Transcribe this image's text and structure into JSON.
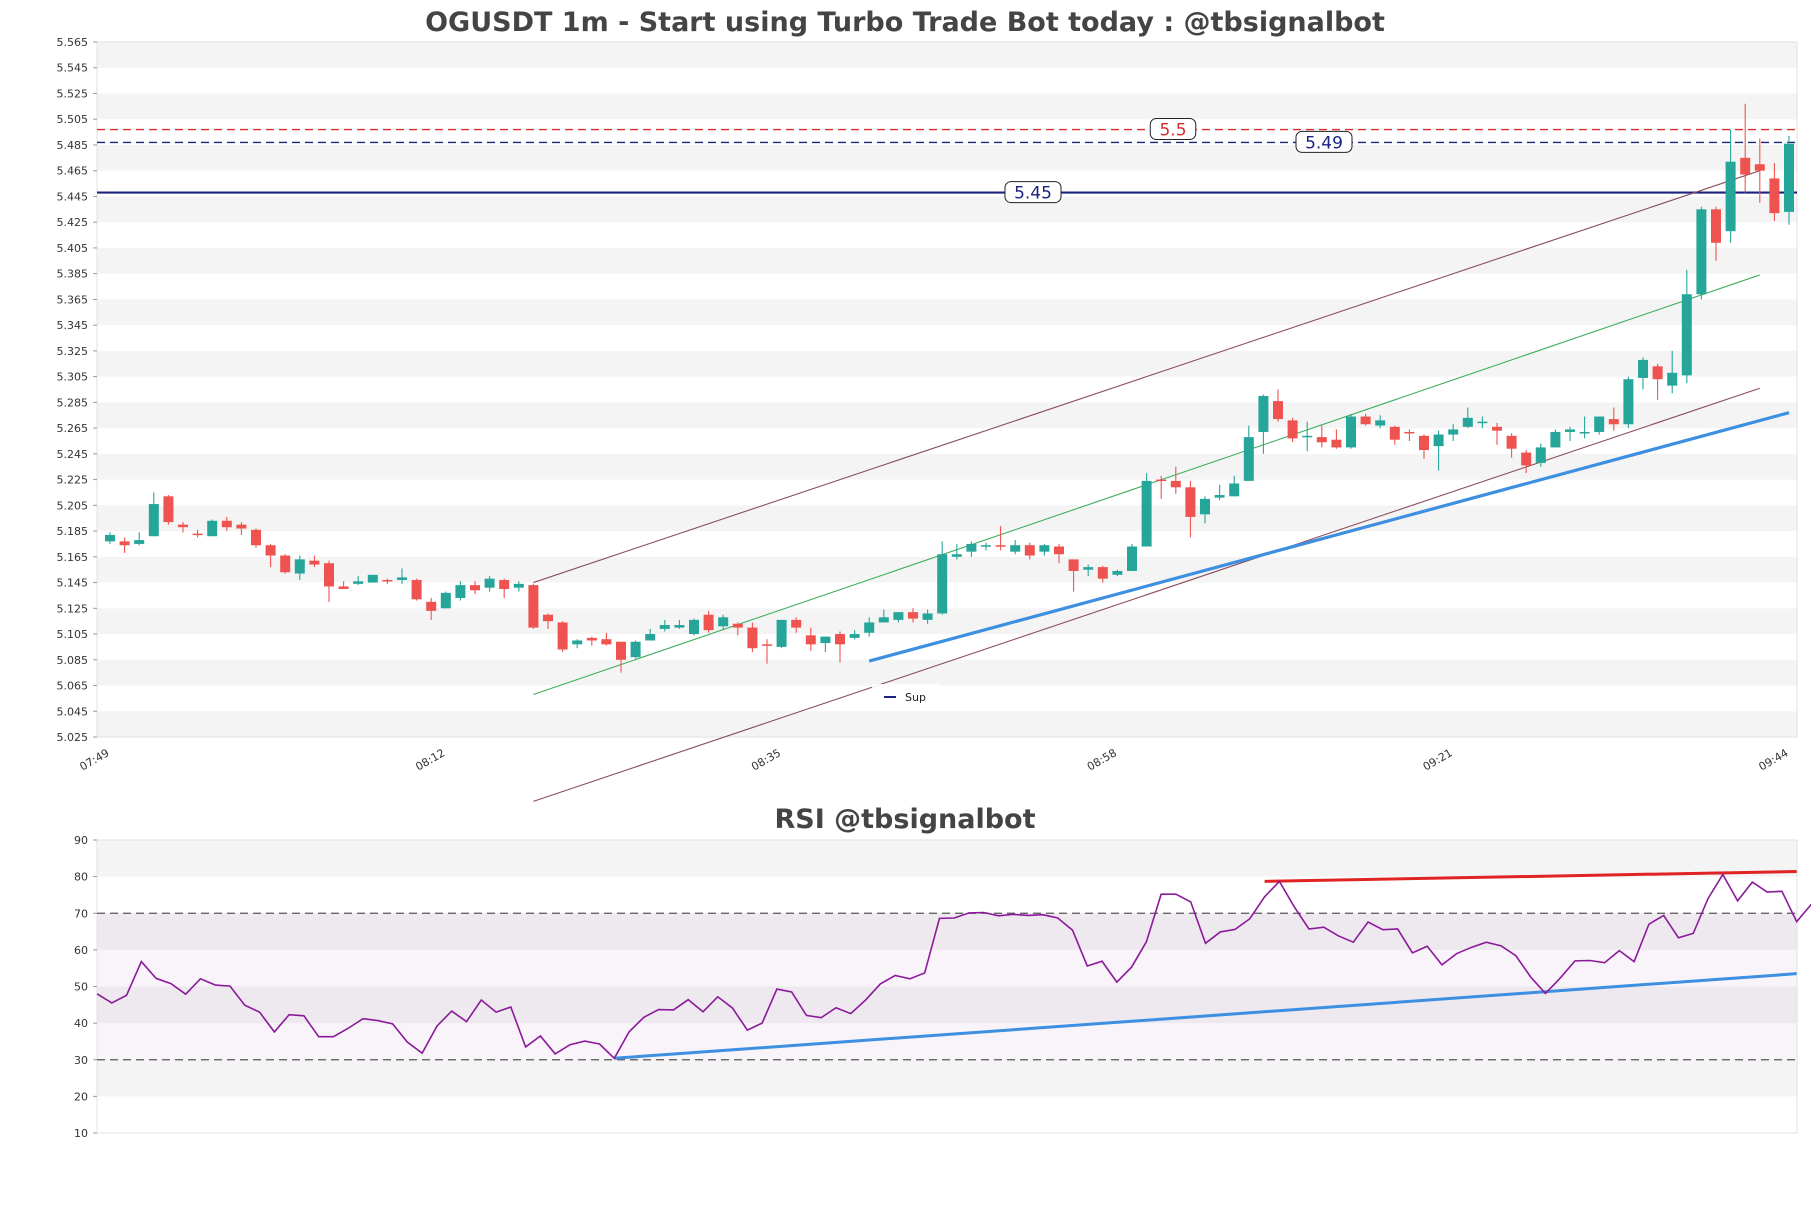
{
  "chart_data": [
    {
      "type": "candlestick",
      "title": "OGUSDT 1m - Start using Turbo Trade Bot today : @tbsignalbot",
      "ylim": [
        5.025,
        5.565
      ],
      "y_ticks": [
        "5.025",
        "5.045",
        "5.065",
        "5.085",
        "5.105",
        "5.125",
        "5.145",
        "5.165",
        "5.185",
        "5.205",
        "5.225",
        "5.245",
        "5.265",
        "5.285",
        "5.305",
        "5.325",
        "5.345",
        "5.365",
        "5.385",
        "5.405",
        "5.425",
        "5.445",
        "5.465",
        "5.485",
        "5.505",
        "5.525",
        "5.545",
        "5.565"
      ],
      "x_ticks": [
        "07:49",
        "08:12",
        "08:35",
        "08:58",
        "09:21",
        "09:44"
      ],
      "x_tick_index": [
        0,
        23,
        46,
        69,
        92,
        115
      ],
      "colors": {
        "up": "#26a69a",
        "down": "#ef5350"
      },
      "candles": [
        {
          "o": 5.177,
          "h": 5.184,
          "l": 5.175,
          "c": 5.182
        },
        {
          "o": 5.177,
          "h": 5.18,
          "l": 5.168,
          "c": 5.174
        },
        {
          "o": 5.175,
          "h": 5.184,
          "l": 5.174,
          "c": 5.178
        },
        {
          "o": 5.181,
          "h": 5.215,
          "l": 5.181,
          "c": 5.206
        },
        {
          "o": 5.212,
          "h": 5.213,
          "l": 5.19,
          "c": 5.192
        },
        {
          "o": 5.19,
          "h": 5.192,
          "l": 5.184,
          "c": 5.188
        },
        {
          "o": 5.183,
          "h": 5.186,
          "l": 5.18,
          "c": 5.182
        },
        {
          "o": 5.181,
          "h": 5.194,
          "l": 5.181,
          "c": 5.193
        },
        {
          "o": 5.193,
          "h": 5.196,
          "l": 5.185,
          "c": 5.188
        },
        {
          "o": 5.19,
          "h": 5.192,
          "l": 5.182,
          "c": 5.187
        },
        {
          "o": 5.186,
          "h": 5.187,
          "l": 5.172,
          "c": 5.174
        },
        {
          "o": 5.174,
          "h": 5.175,
          "l": 5.157,
          "c": 5.166
        },
        {
          "o": 5.166,
          "h": 5.167,
          "l": 5.152,
          "c": 5.153
        },
        {
          "o": 5.152,
          "h": 5.166,
          "l": 5.147,
          "c": 5.163
        },
        {
          "o": 5.162,
          "h": 5.166,
          "l": 5.157,
          "c": 5.159
        },
        {
          "o": 5.16,
          "h": 5.162,
          "l": 5.13,
          "c": 5.142
        },
        {
          "o": 5.142,
          "h": 5.146,
          "l": 5.14,
          "c": 5.14
        },
        {
          "o": 5.144,
          "h": 5.15,
          "l": 5.143,
          "c": 5.146
        },
        {
          "o": 5.145,
          "h": 5.151,
          "l": 5.145,
          "c": 5.151
        },
        {
          "o": 5.147,
          "h": 5.148,
          "l": 5.144,
          "c": 5.146
        },
        {
          "o": 5.147,
          "h": 5.156,
          "l": 5.144,
          "c": 5.149
        },
        {
          "o": 5.147,
          "h": 5.148,
          "l": 5.131,
          "c": 5.132
        },
        {
          "o": 5.13,
          "h": 5.133,
          "l": 5.116,
          "c": 5.123
        },
        {
          "o": 5.125,
          "h": 5.138,
          "l": 5.125,
          "c": 5.137
        },
        {
          "o": 5.133,
          "h": 5.146,
          "l": 5.131,
          "c": 5.143
        },
        {
          "o": 5.143,
          "h": 5.146,
          "l": 5.136,
          "c": 5.139
        },
        {
          "o": 5.141,
          "h": 5.15,
          "l": 5.138,
          "c": 5.148
        },
        {
          "o": 5.147,
          "h": 5.148,
          "l": 5.133,
          "c": 5.14
        },
        {
          "o": 5.141,
          "h": 5.146,
          "l": 5.138,
          "c": 5.144
        },
        {
          "o": 5.143,
          "h": 5.144,
          "l": 5.109,
          "c": 5.11
        },
        {
          "o": 5.12,
          "h": 5.121,
          "l": 5.109,
          "c": 5.115
        },
        {
          "o": 5.114,
          "h": 5.115,
          "l": 5.091,
          "c": 5.093
        },
        {
          "o": 5.097,
          "h": 5.101,
          "l": 5.094,
          "c": 5.1
        },
        {
          "o": 5.102,
          "h": 5.103,
          "l": 5.096,
          "c": 5.1
        },
        {
          "o": 5.101,
          "h": 5.106,
          "l": 5.096,
          "c": 5.097
        },
        {
          "o": 5.099,
          "h": 5.099,
          "l": 5.075,
          "c": 5.085
        },
        {
          "o": 5.087,
          "h": 5.1,
          "l": 5.086,
          "c": 5.099
        },
        {
          "o": 5.1,
          "h": 5.109,
          "l": 5.1,
          "c": 5.105
        },
        {
          "o": 5.109,
          "h": 5.116,
          "l": 5.107,
          "c": 5.112
        },
        {
          "o": 5.11,
          "h": 5.116,
          "l": 5.109,
          "c": 5.112
        },
        {
          "o": 5.105,
          "h": 5.117,
          "l": 5.104,
          "c": 5.116
        },
        {
          "o": 5.12,
          "h": 5.123,
          "l": 5.106,
          "c": 5.108
        },
        {
          "o": 5.111,
          "h": 5.12,
          "l": 5.108,
          "c": 5.118
        },
        {
          "o": 5.113,
          "h": 5.114,
          "l": 5.104,
          "c": 5.11
        },
        {
          "o": 5.11,
          "h": 5.114,
          "l": 5.091,
          "c": 5.094
        },
        {
          "o": 5.097,
          "h": 5.101,
          "l": 5.082,
          "c": 5.096
        },
        {
          "o": 5.095,
          "h": 5.116,
          "l": 5.094,
          "c": 5.116
        },
        {
          "o": 5.116,
          "h": 5.118,
          "l": 5.106,
          "c": 5.11
        },
        {
          "o": 5.104,
          "h": 5.11,
          "l": 5.092,
          "c": 5.097
        },
        {
          "o": 5.098,
          "h": 5.101,
          "l": 5.091,
          "c": 5.103
        },
        {
          "o": 5.105,
          "h": 5.107,
          "l": 5.083,
          "c": 5.097
        },
        {
          "o": 5.102,
          "h": 5.108,
          "l": 5.101,
          "c": 5.105
        },
        {
          "o": 5.106,
          "h": 5.118,
          "l": 5.103,
          "c": 5.114
        },
        {
          "o": 5.114,
          "h": 5.124,
          "l": 5.114,
          "c": 5.118
        },
        {
          "o": 5.116,
          "h": 5.122,
          "l": 5.114,
          "c": 5.122
        },
        {
          "o": 5.122,
          "h": 5.125,
          "l": 5.114,
          "c": 5.117
        },
        {
          "o": 5.116,
          "h": 5.124,
          "l": 5.113,
          "c": 5.121
        },
        {
          "o": 5.121,
          "h": 5.177,
          "l": 5.12,
          "c": 5.167
        },
        {
          "o": 5.165,
          "h": 5.175,
          "l": 5.163,
          "c": 5.167
        },
        {
          "o": 5.169,
          "h": 5.177,
          "l": 5.165,
          "c": 5.175
        },
        {
          "o": 5.174,
          "h": 5.176,
          "l": 5.17,
          "c": 5.174
        },
        {
          "o": 5.174,
          "h": 5.189,
          "l": 5.17,
          "c": 5.173
        },
        {
          "o": 5.169,
          "h": 5.178,
          "l": 5.167,
          "c": 5.174
        },
        {
          "o": 5.174,
          "h": 5.176,
          "l": 5.163,
          "c": 5.166
        },
        {
          "o": 5.169,
          "h": 5.175,
          "l": 5.166,
          "c": 5.174
        },
        {
          "o": 5.173,
          "h": 5.175,
          "l": 5.16,
          "c": 5.167
        },
        {
          "o": 5.163,
          "h": 5.163,
          "l": 5.138,
          "c": 5.154
        },
        {
          "o": 5.155,
          "h": 5.159,
          "l": 5.15,
          "c": 5.157
        },
        {
          "o": 5.157,
          "h": 5.158,
          "l": 5.145,
          "c": 5.148
        },
        {
          "o": 5.151,
          "h": 5.155,
          "l": 5.15,
          "c": 5.154
        },
        {
          "o": 5.154,
          "h": 5.175,
          "l": 5.154,
          "c": 5.173
        },
        {
          "o": 5.173,
          "h": 5.23,
          "l": 5.173,
          "c": 5.224
        },
        {
          "o": 5.225,
          "h": 5.228,
          "l": 5.21,
          "c": 5.224
        },
        {
          "o": 5.224,
          "h": 5.235,
          "l": 5.214,
          "c": 5.219
        },
        {
          "o": 5.219,
          "h": 5.224,
          "l": 5.18,
          "c": 5.196
        },
        {
          "o": 5.198,
          "h": 5.212,
          "l": 5.191,
          "c": 5.21
        },
        {
          "o": 5.211,
          "h": 5.221,
          "l": 5.209,
          "c": 5.213
        },
        {
          "o": 5.212,
          "h": 5.228,
          "l": 5.212,
          "c": 5.222
        },
        {
          "o": 5.224,
          "h": 5.267,
          "l": 5.224,
          "c": 5.258
        },
        {
          "o": 5.262,
          "h": 5.291,
          "l": 5.245,
          "c": 5.29
        },
        {
          "o": 5.286,
          "h": 5.295,
          "l": 5.27,
          "c": 5.272
        },
        {
          "o": 5.271,
          "h": 5.273,
          "l": 5.254,
          "c": 5.257
        },
        {
          "o": 5.259,
          "h": 5.27,
          "l": 5.247,
          "c": 5.259
        },
        {
          "o": 5.258,
          "h": 5.267,
          "l": 5.25,
          "c": 5.254
        },
        {
          "o": 5.256,
          "h": 5.264,
          "l": 5.249,
          "c": 5.25
        },
        {
          "o": 5.25,
          "h": 5.276,
          "l": 5.249,
          "c": 5.274
        },
        {
          "o": 5.274,
          "h": 5.276,
          "l": 5.267,
          "c": 5.268
        },
        {
          "o": 5.267,
          "h": 5.275,
          "l": 5.265,
          "c": 5.271
        },
        {
          "o": 5.266,
          "h": 5.267,
          "l": 5.252,
          "c": 5.256
        },
        {
          "o": 5.262,
          "h": 5.264,
          "l": 5.255,
          "c": 5.261
        },
        {
          "o": 5.259,
          "h": 5.26,
          "l": 5.241,
          "c": 5.248
        },
        {
          "o": 5.251,
          "h": 5.263,
          "l": 5.232,
          "c": 5.26
        },
        {
          "o": 5.26,
          "h": 5.268,
          "l": 5.255,
          "c": 5.264
        },
        {
          "o": 5.266,
          "h": 5.281,
          "l": 5.265,
          "c": 5.273
        },
        {
          "o": 5.27,
          "h": 5.274,
          "l": 5.265,
          "c": 5.27
        },
        {
          "o": 5.266,
          "h": 5.269,
          "l": 5.252,
          "c": 5.263
        },
        {
          "o": 5.259,
          "h": 5.261,
          "l": 5.242,
          "c": 5.249
        },
        {
          "o": 5.246,
          "h": 5.248,
          "l": 5.23,
          "c": 5.236
        },
        {
          "o": 5.238,
          "h": 5.253,
          "l": 5.235,
          "c": 5.25
        },
        {
          "o": 5.25,
          "h": 5.264,
          "l": 5.25,
          "c": 5.262
        },
        {
          "o": 5.262,
          "h": 5.266,
          "l": 5.255,
          "c": 5.264
        },
        {
          "o": 5.262,
          "h": 5.274,
          "l": 5.257,
          "c": 5.262
        },
        {
          "o": 5.262,
          "h": 5.274,
          "l": 5.26,
          "c": 5.274
        },
        {
          "o": 5.272,
          "h": 5.281,
          "l": 5.263,
          "c": 5.268
        },
        {
          "o": 5.268,
          "h": 5.305,
          "l": 5.265,
          "c": 5.303
        },
        {
          "o": 5.304,
          "h": 5.32,
          "l": 5.295,
          "c": 5.318
        },
        {
          "o": 5.313,
          "h": 5.315,
          "l": 5.287,
          "c": 5.303
        },
        {
          "o": 5.298,
          "h": 5.325,
          "l": 5.292,
          "c": 5.308
        },
        {
          "o": 5.306,
          "h": 5.388,
          "l": 5.3,
          "c": 5.369
        },
        {
          "o": 5.369,
          "h": 5.437,
          "l": 5.365,
          "c": 5.435
        },
        {
          "o": 5.435,
          "h": 5.437,
          "l": 5.395,
          "c": 5.409
        },
        {
          "o": 5.418,
          "h": 5.497,
          "l": 5.409,
          "c": 5.472
        },
        {
          "o": 5.475,
          "h": 5.517,
          "l": 5.448,
          "c": 5.462
        },
        {
          "o": 5.47,
          "h": 5.49,
          "l": 5.44,
          "c": 5.465
        },
        {
          "o": 5.459,
          "h": 5.471,
          "l": 5.426,
          "c": 5.432
        },
        {
          "o": 5.433,
          "h": 5.492,
          "l": 5.423,
          "c": 5.486
        }
      ],
      "levels": [
        {
          "value": 5.497,
          "label": "5.5",
          "color": "#d32f2f",
          "style": "dashed"
        },
        {
          "value": 5.487,
          "label": "5.49",
          "color": "#1a237e",
          "style": "dashed"
        },
        {
          "value": 5.448,
          "label": "5.45",
          "color": "#1a237e",
          "style": "solid"
        }
      ],
      "trend_lines": [
        {
          "from": [
            29,
            5.145
          ],
          "to": [
            113,
            5.465
          ],
          "color": "#8d4e5a"
        },
        {
          "from": [
            29,
            5.058
          ],
          "to": [
            113,
            5.384
          ],
          "color": "#3faf5f"
        },
        {
          "from": [
            29,
            4.975
          ],
          "to": [
            113,
            5.296
          ],
          "color": "#8d4e5a"
        },
        {
          "from": [
            52,
            5.084
          ],
          "to": [
            115,
            5.277
          ],
          "color": "#3d8fe0",
          "bold": true
        }
      ],
      "legend": [
        {
          "label": "Sup",
          "color": "#1a237e"
        }
      ],
      "legend_position": "bottom-center"
    },
    {
      "type": "line",
      "title": "RSI @tbsignalbot",
      "ylim": [
        10,
        90
      ],
      "y_ticks": [
        "10",
        "20",
        "30",
        "40",
        "50",
        "60",
        "70",
        "80",
        "90"
      ],
      "overbought": 70,
      "oversold": 30,
      "line_color": "#8b1a9a",
      "values": [
        48,
        45.5,
        47.6,
        56.8,
        52.2,
        50.8,
        47.9,
        52.1,
        50.4,
        50.1,
        44.9,
        43,
        37.6,
        42.3,
        42,
        36.3,
        36.3,
        38.6,
        41.2,
        40.7,
        39.8,
        34.8,
        31.8,
        39.2,
        43.3,
        40.4,
        46.3,
        43,
        44.4,
        33.5,
        36.5,
        31.6,
        34.1,
        35.1,
        34.3,
        30.4,
        37.6,
        41.6,
        43.7,
        43.6,
        46.4,
        43.1,
        47.2,
        44.1,
        38.1,
        40,
        49.3,
        48.5,
        42.1,
        41.5,
        44.2,
        42.6,
        46.3,
        50.7,
        53,
        52.1,
        53.7,
        68.6,
        68.7,
        70.1,
        70.2,
        69.3,
        69.7,
        69.4,
        69.6,
        68.7,
        65.4,
        55.6,
        56.9,
        51.2,
        55.3,
        62.2,
        75.2,
        75.2,
        73.1,
        61.8,
        64.9,
        65.6,
        68.5,
        74.5,
        78.7,
        71.8,
        65.7,
        66.2,
        63.8,
        62.1,
        67.6,
        65.5,
        65.7,
        59.2,
        61,
        55.9,
        59,
        60.7,
        62.1,
        61.1,
        58.4,
        52.6,
        48.1,
        52.3,
        57,
        57.1,
        56.5,
        59.8,
        56.8,
        67,
        69.4,
        63.3,
        64.5,
        74,
        80.6,
        73.4,
        78.5,
        75.8,
        76,
        67.7,
        72.5
      ],
      "trend_lines": [
        {
          "from": [
            79,
            78.7
          ],
          "to": [
            115,
            81.4
          ],
          "color": "#e02424"
        },
        {
          "from": [
            35,
            30.4
          ],
          "to": [
            115,
            53.5
          ],
          "color": "#3d8fe0"
        }
      ]
    }
  ]
}
